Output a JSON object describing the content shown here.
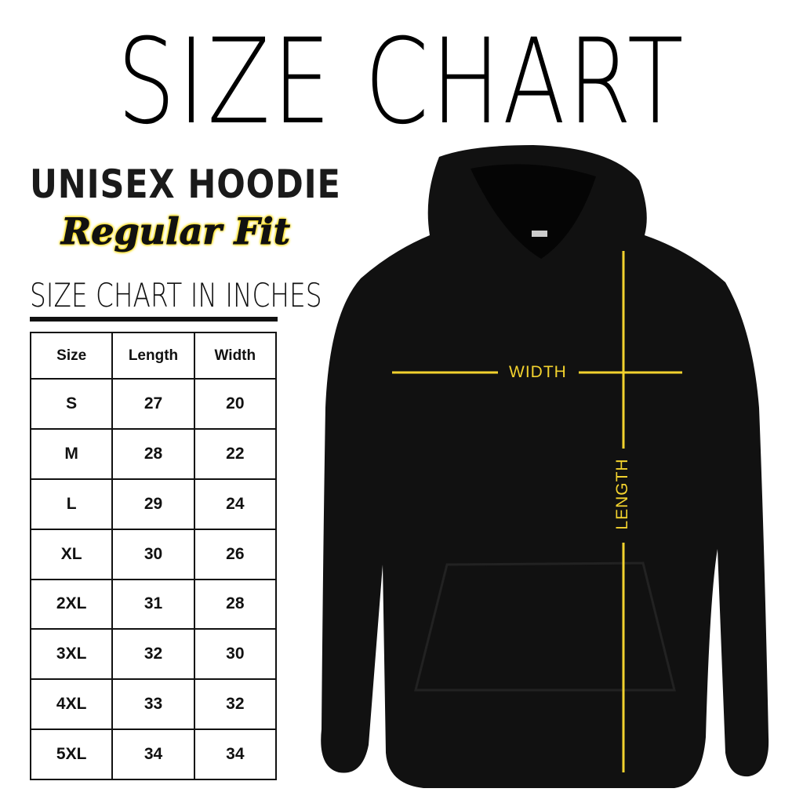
{
  "title": "SIZE CHART",
  "product": "UNISEX HOODIE",
  "fit": "Regular Fit",
  "units_heading": "SIZE CHART IN INCHES",
  "table": {
    "headers": [
      "Size",
      "Length",
      "Width"
    ],
    "rows": [
      [
        "S",
        "27",
        "20"
      ],
      [
        "M",
        "28",
        "22"
      ],
      [
        "L",
        "29",
        "24"
      ],
      [
        "XL",
        "30",
        "26"
      ],
      [
        "2XL",
        "31",
        "28"
      ],
      [
        "3XL",
        "32",
        "30"
      ],
      [
        "4XL",
        "33",
        "32"
      ],
      [
        "5XL",
        "34",
        "34"
      ]
    ]
  },
  "diagram": {
    "width_label": "WIDTH",
    "length_label": "LENGTH",
    "garment_color": "#111111",
    "measure_line_color": "#f2d22e"
  }
}
